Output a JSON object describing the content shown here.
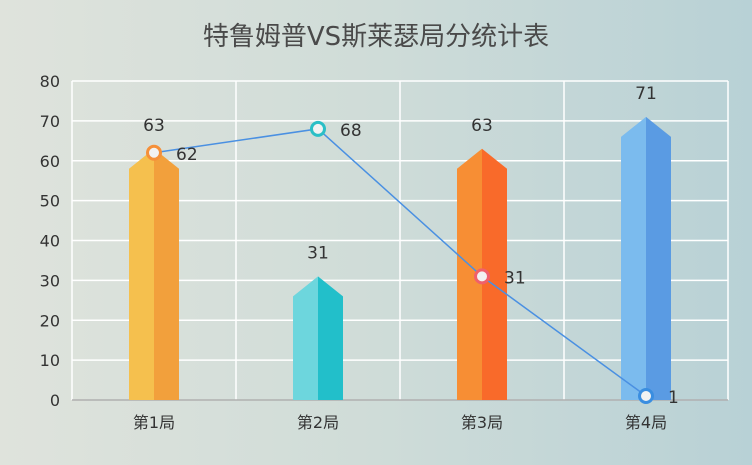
{
  "chart_data": {
    "type": "bar",
    "title": "特鲁姆普VS斯莱瑟局分统计表",
    "categories": [
      "第1局",
      "第2局",
      "第3局",
      "第4局"
    ],
    "ylim": [
      0,
      80
    ],
    "yticks": [
      0,
      10,
      20,
      30,
      40,
      50,
      60,
      70,
      80
    ],
    "grid": true,
    "series": [
      {
        "type": "bar",
        "values": [
          63,
          31,
          63,
          71
        ],
        "colors": [
          [
            "#f5c04e",
            "#f2a03c"
          ],
          [
            "#6dd6dd",
            "#22bfca"
          ],
          [
            "#f78e34",
            "#f96a2a"
          ],
          [
            "#7bbbee",
            "#5a9be3"
          ]
        ]
      },
      {
        "type": "line",
        "values": [
          62,
          68,
          31,
          1
        ],
        "color": "#4a90e2",
        "marker_colors": [
          "#f5903a",
          "#2bbfc6",
          "#f0606a",
          "#3a8ee0"
        ]
      }
    ]
  }
}
